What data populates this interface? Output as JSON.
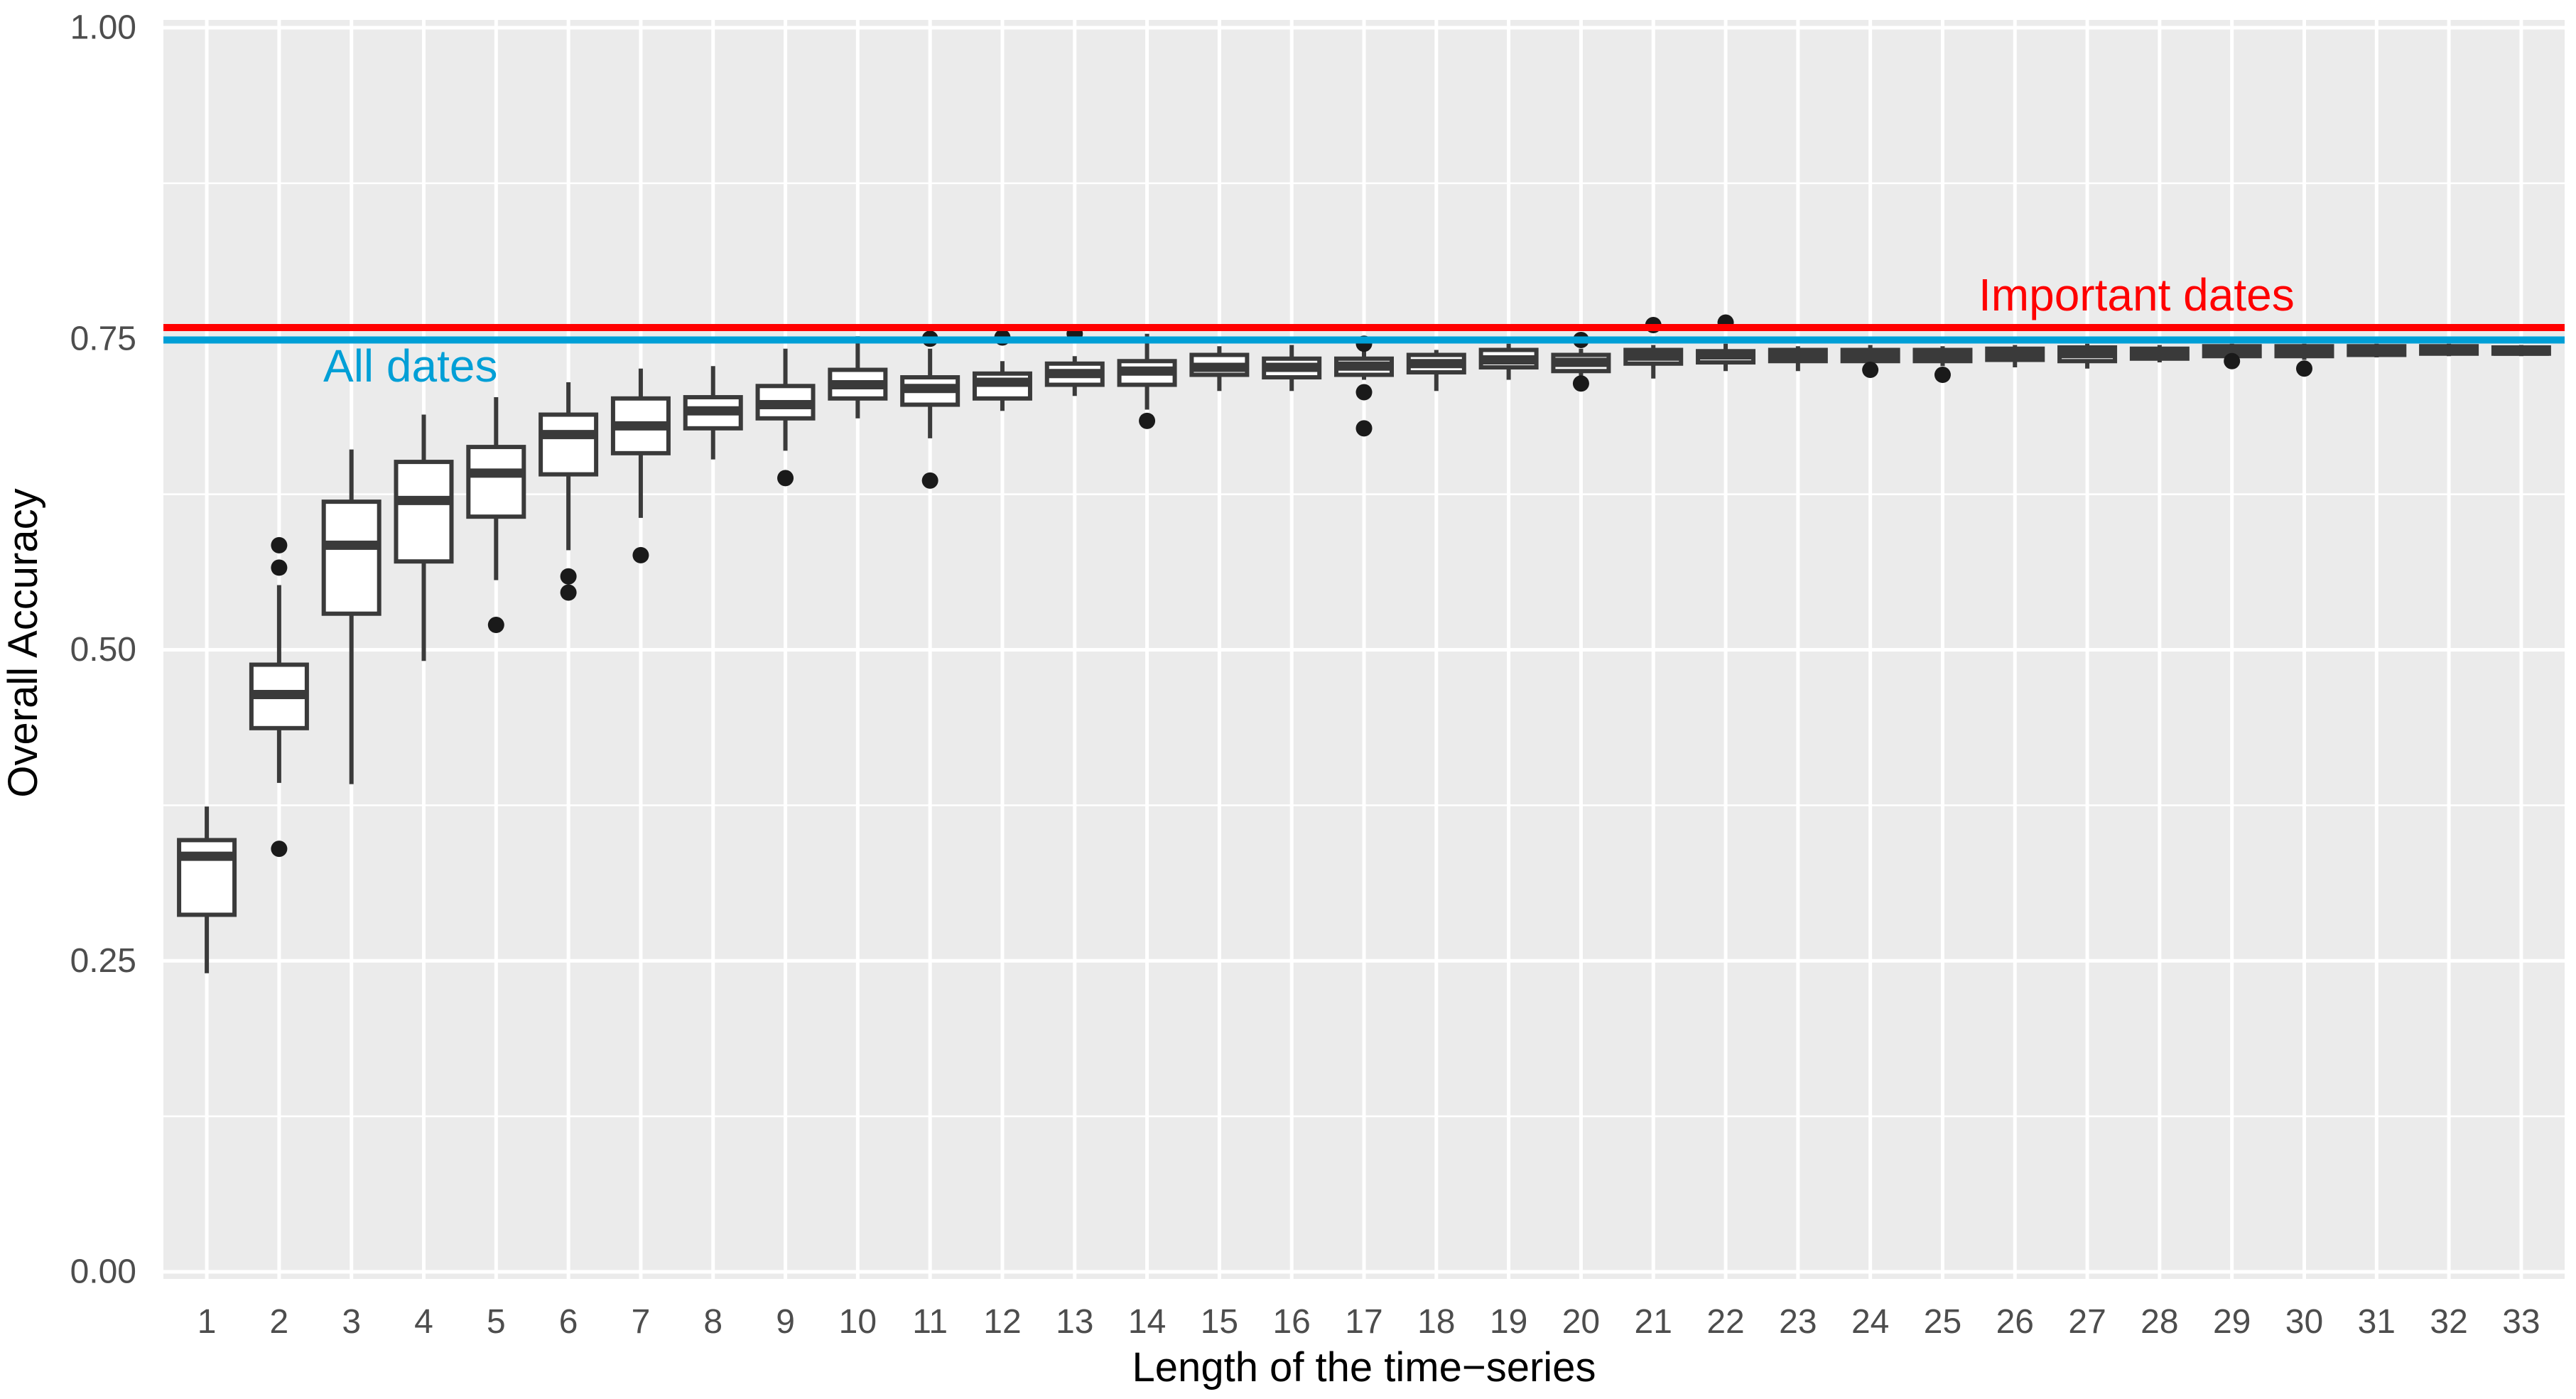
{
  "chart_data": {
    "type": "boxplot",
    "title": "",
    "xlabel": "Length of the time−series",
    "ylabel": "Overall Accuracy",
    "ylim": [
      0.0,
      1.0
    ],
    "grid": "on",
    "panel_background": "#EBEBEB",
    "gridline_color": "#FFFFFF",
    "tick_label_color": "#4D4D4D",
    "box_stroke_color": "#3A3A3A",
    "outlier_color": "#1A1A1A",
    "y_axis": {
      "title": "Overall Accuracy",
      "ticks": [
        {
          "label": "0.00",
          "value": 0.0
        },
        {
          "label": "0.25",
          "value": 0.25
        },
        {
          "label": "0.50",
          "value": 0.5
        },
        {
          "label": "0.75",
          "value": 0.75
        },
        {
          "label": "1.00",
          "value": 1.0
        }
      ],
      "minor_ticks": [
        0.125,
        0.375,
        0.625,
        0.875
      ]
    },
    "x_axis": {
      "title": "Length of the time−series",
      "ticks": [
        "1",
        "2",
        "3",
        "4",
        "5",
        "6",
        "7",
        "8",
        "9",
        "10",
        "11",
        "12",
        "13",
        "14",
        "15",
        "16",
        "17",
        "18",
        "19",
        "20",
        "21",
        "22",
        "23",
        "24",
        "25",
        "26",
        "27",
        "28",
        "29",
        "30",
        "31",
        "32",
        "33"
      ]
    },
    "ref_lines": [
      {
        "id": "important-dates",
        "label": "Important dates",
        "value": 0.759,
        "color": "#FF0000"
      },
      {
        "id": "all-dates",
        "label": "All dates",
        "value": 0.749,
        "color": "#009FD6"
      }
    ],
    "boxes": [
      {
        "x": "1",
        "lo": 0.24,
        "q1": 0.287,
        "med": 0.334,
        "q3": 0.347,
        "hi": 0.374,
        "out": []
      },
      {
        "x": "2",
        "lo": 0.393,
        "q1": 0.437,
        "med": 0.464,
        "q3": 0.488,
        "hi": 0.552,
        "out": [
          0.584,
          0.566,
          0.34
        ]
      },
      {
        "x": "3",
        "lo": 0.392,
        "q1": 0.529,
        "med": 0.584,
        "q3": 0.619,
        "hi": 0.661,
        "out": []
      },
      {
        "x": "4",
        "lo": 0.491,
        "q1": 0.571,
        "med": 0.62,
        "q3": 0.651,
        "hi": 0.689,
        "out": []
      },
      {
        "x": "5",
        "lo": 0.556,
        "q1": 0.607,
        "med": 0.642,
        "q3": 0.663,
        "hi": 0.703,
        "out": [
          0.52
        ]
      },
      {
        "x": "6",
        "lo": 0.58,
        "q1": 0.641,
        "med": 0.673,
        "q3": 0.689,
        "hi": 0.715,
        "out": [
          0.559,
          0.546
        ]
      },
      {
        "x": "7",
        "lo": 0.606,
        "q1": 0.658,
        "med": 0.68,
        "q3": 0.702,
        "hi": 0.726,
        "out": [
          0.576
        ]
      },
      {
        "x": "8",
        "lo": 0.653,
        "q1": 0.678,
        "med": 0.692,
        "q3": 0.703,
        "hi": 0.728,
        "out": []
      },
      {
        "x": "9",
        "lo": 0.66,
        "q1": 0.686,
        "med": 0.697,
        "q3": 0.712,
        "hi": 0.742,
        "out": [
          0.638
        ]
      },
      {
        "x": "10",
        "lo": 0.686,
        "q1": 0.702,
        "med": 0.713,
        "q3": 0.725,
        "hi": 0.752,
        "out": []
      },
      {
        "x": "11",
        "lo": 0.67,
        "q1": 0.697,
        "med": 0.71,
        "q3": 0.719,
        "hi": 0.742,
        "out": [
          0.75,
          0.636
        ]
      },
      {
        "x": "12",
        "lo": 0.692,
        "q1": 0.702,
        "med": 0.715,
        "q3": 0.722,
        "hi": 0.732,
        "out": [
          0.751
        ]
      },
      {
        "x": "13",
        "lo": 0.704,
        "q1": 0.713,
        "med": 0.722,
        "q3": 0.73,
        "hi": 0.736,
        "out": [
          0.754
        ]
      },
      {
        "x": "14",
        "lo": 0.693,
        "q1": 0.713,
        "med": 0.724,
        "q3": 0.732,
        "hi": 0.754,
        "out": [
          0.684
        ]
      },
      {
        "x": "15",
        "lo": 0.708,
        "q1": 0.721,
        "med": 0.727,
        "q3": 0.737,
        "hi": 0.744,
        "out": []
      },
      {
        "x": "16",
        "lo": 0.708,
        "q1": 0.719,
        "med": 0.727,
        "q3": 0.734,
        "hi": 0.745,
        "out": []
      },
      {
        "x": "17",
        "lo": 0.717,
        "q1": 0.721,
        "med": 0.728,
        "q3": 0.734,
        "hi": 0.743,
        "out": [
          0.746,
          0.707,
          0.678
        ]
      },
      {
        "x": "18",
        "lo": 0.708,
        "q1": 0.723,
        "med": 0.73,
        "q3": 0.737,
        "hi": 0.741,
        "out": []
      },
      {
        "x": "19",
        "lo": 0.717,
        "q1": 0.727,
        "med": 0.733,
        "q3": 0.741,
        "hi": 0.746,
        "out": []
      },
      {
        "x": "20",
        "lo": 0.72,
        "q1": 0.724,
        "med": 0.731,
        "q3": 0.737,
        "hi": 0.742,
        "out": [
          0.749,
          0.714
        ]
      },
      {
        "x": "21",
        "lo": 0.718,
        "q1": 0.73,
        "med": 0.736,
        "q3": 0.741,
        "hi": 0.745,
        "out": [
          0.761
        ]
      },
      {
        "x": "22",
        "lo": 0.724,
        "q1": 0.731,
        "med": 0.737,
        "q3": 0.74,
        "hi": 0.746,
        "out": [
          0.763
        ]
      },
      {
        "x": "23",
        "lo": 0.724,
        "q1": 0.732,
        "med": 0.736,
        "q3": 0.741,
        "hi": 0.744,
        "out": []
      },
      {
        "x": "24",
        "lo": 0.728,
        "q1": 0.732,
        "med": 0.737,
        "q3": 0.741,
        "hi": 0.745,
        "out": [
          0.725
        ]
      },
      {
        "x": "25",
        "lo": 0.728,
        "q1": 0.732,
        "med": 0.737,
        "q3": 0.741,
        "hi": 0.744,
        "out": [
          0.721
        ]
      },
      {
        "x": "26",
        "lo": 0.727,
        "q1": 0.733,
        "med": 0.738,
        "q3": 0.742,
        "hi": 0.745,
        "out": []
      },
      {
        "x": "27",
        "lo": 0.726,
        "q1": 0.732,
        "med": 0.738,
        "q3": 0.743,
        "hi": 0.746,
        "out": []
      },
      {
        "x": "28",
        "lo": 0.731,
        "q1": 0.734,
        "med": 0.739,
        "q3": 0.742,
        "hi": 0.745,
        "out": []
      },
      {
        "x": "29",
        "lo": 0.735,
        "q1": 0.736,
        "med": 0.74,
        "q3": 0.744,
        "hi": 0.746,
        "out": [
          0.732
        ]
      },
      {
        "x": "30",
        "lo": 0.733,
        "q1": 0.736,
        "med": 0.74,
        "q3": 0.744,
        "hi": 0.746,
        "out": [
          0.726
        ]
      },
      {
        "x": "31",
        "lo": 0.735,
        "q1": 0.737,
        "med": 0.74,
        "q3": 0.744,
        "hi": 0.746,
        "out": []
      },
      {
        "x": "32",
        "lo": 0.736,
        "q1": 0.738,
        "med": 0.741,
        "q3": 0.744,
        "hi": 0.746,
        "out": []
      },
      {
        "x": "33",
        "lo": 0.736,
        "q1": 0.738,
        "med": 0.74,
        "q3": 0.743,
        "hi": 0.745,
        "out": []
      }
    ]
  }
}
